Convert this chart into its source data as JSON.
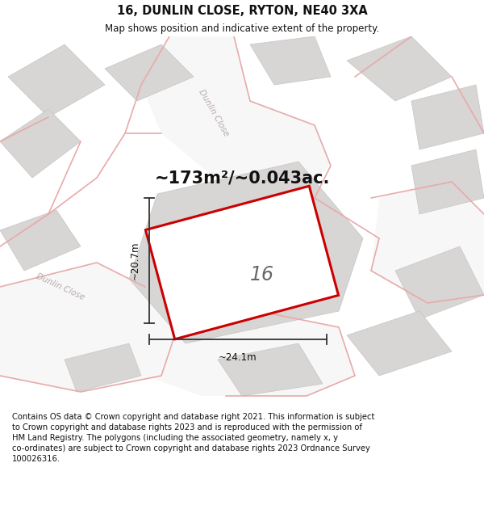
{
  "title": "16, DUNLIN CLOSE, RYTON, NE40 3XA",
  "subtitle": "Map shows position and indicative extent of the property.",
  "footer_line1": "Contains OS data © Crown copyright and database right 2021. This information is subject",
  "footer_line2": "to Crown copyright and database rights 2023 and is reproduced with the permission of",
  "footer_line3": "HM Land Registry. The polygons (including the associated geometry, namely x, y",
  "footer_line4": "co-ordinates) are subject to Crown copyright and database rights 2023 Ordnance Survey",
  "footer_line5": "100026316.",
  "area_text": "~173m²/~0.043ac.",
  "plot_number": "16",
  "dim_width": "~24.1m",
  "dim_height": "~20.7m",
  "bg_color": "#f2f0f0",
  "map_bg_color": "#edeaea",
  "plot_fill": "#ffffff",
  "plot_edge_color": "#cc0000",
  "road_fill_color": "#f7f7f7",
  "building_color": "#d8d5d5",
  "road_line_color": "#e8aaaa",
  "street_label_color": "#b8aaaa",
  "title_color": "#111111",
  "footer_color": "#111111",
  "dim_line_color": "#333333",
  "title_fontsize": 10.5,
  "subtitle_fontsize": 8.5,
  "area_fontsize": 15,
  "plot_num_fontsize": 17,
  "dim_fontsize": 8.5,
  "footer_fontsize": 7.2
}
